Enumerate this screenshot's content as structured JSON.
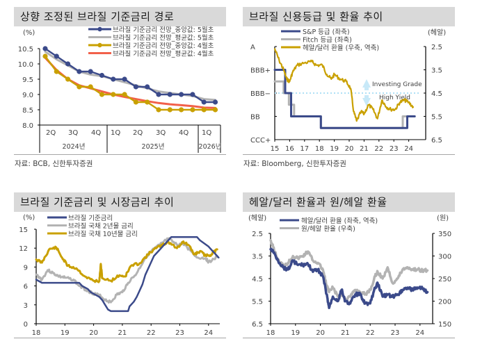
{
  "panels": [
    {
      "title": "상향 조정된 브라질 기준금리 경로",
      "source": "자료: BCB, 신한투자증권"
    },
    {
      "title": "브라질 신용등급 및 환율 추이",
      "source": "자료: Bloomberg, 신한투자증권"
    },
    {
      "title": "브라질 기준금리 및 시장금리 추이",
      "source": ""
    },
    {
      "title": "헤알/달러 환율과 원/헤알 환율",
      "source": ""
    }
  ],
  "chart_data": [
    {
      "type": "line",
      "title": "상향 조정된 브라질 기준금리 경로",
      "ylabel": "(%)",
      "ylim": [
        8.0,
        10.5
      ],
      "yticks": [
        "10.5",
        "10.0",
        "9.5",
        "9.0",
        "8.5",
        "8.0"
      ],
      "x_quarters": [
        "2Q",
        "3Q",
        "4Q",
        "1Q",
        "2Q",
        "3Q",
        "4Q",
        "1Q"
      ],
      "x_years": [
        "2024년",
        "2025년",
        "2026년"
      ],
      "series": [
        {
          "name": "브라질 기준금리 전망_중앙값: 5월초",
          "color": "#3b4a8a",
          "markers": true,
          "values": [
            10.5,
            10.25,
            10.0,
            9.75,
            9.75,
            9.625,
            9.5,
            9.5,
            9.25,
            9.25,
            9.0,
            9.0,
            9.0,
            9.0,
            8.75,
            8.75
          ]
        },
        {
          "name": "브라질 기준금리 전망_평균값: 5월초",
          "color": "#b3b3b3",
          "markers": false,
          "values": [
            10.4,
            10.15,
            9.95,
            9.75,
            9.65,
            9.6,
            9.5,
            9.4,
            9.3,
            9.2,
            9.1,
            9.05,
            9.0,
            8.95,
            8.85,
            8.82
          ]
        },
        {
          "name": "브라질 기준금리 전망_중앙값: 4월초",
          "color": "#c9a000",
          "markers": true,
          "values": [
            10.25,
            9.75,
            9.5,
            9.25,
            9.25,
            9.0,
            9.0,
            9.0,
            8.75,
            8.75,
            8.5,
            8.5,
            8.5,
            8.5,
            8.5,
            8.5
          ]
        },
        {
          "name": "브라질 기준금리 전망_평균값: 4월초",
          "color": "#f2604a",
          "markers": false,
          "values": [
            10.2,
            9.8,
            9.5,
            9.3,
            9.2,
            9.1,
            9.0,
            8.92,
            8.85,
            8.78,
            8.72,
            8.68,
            8.65,
            8.62,
            8.57,
            8.56
          ]
        }
      ]
    },
    {
      "type": "line",
      "title": "브라질 신용등급 및 환율 추이",
      "y_left_ticks": [
        "A",
        "BBB+",
        "BBB−",
        "BB",
        "CCC+"
      ],
      "y_right_label": "(헤알)",
      "y_right_ticks": [
        "2.5",
        "3.5",
        "4.5",
        "5.5",
        "6.5"
      ],
      "y_right_lim": [
        2.5,
        6.5
      ],
      "x_ticks": [
        "15",
        "16",
        "17",
        "18",
        "19",
        "20",
        "21",
        "22",
        "23",
        "24"
      ],
      "annotations": [
        "Investing Grade",
        "High Yield"
      ],
      "series": [
        {
          "name": "S&P 등급 (좌축)",
          "color": "#3b4a8a",
          "steps": [
            [
              15.0,
              1
            ],
            [
              15.7,
              1
            ],
            [
              15.7,
              2
            ],
            [
              16.1,
              2
            ],
            [
              16.1,
              3
            ],
            [
              18.1,
              3
            ],
            [
              18.1,
              3.5
            ],
            [
              23.9,
              3.5
            ],
            [
              23.9,
              3
            ],
            [
              24.4,
              3
            ]
          ]
        },
        {
          "name": "Fitch 등급 (좌축)",
          "color": "#b3b3b3",
          "steps": [
            [
              15.0,
              1.5
            ],
            [
              15.6,
              1.5
            ],
            [
              15.6,
              2
            ],
            [
              15.95,
              2
            ],
            [
              15.95,
              2.5
            ],
            [
              16.3,
              2.5
            ],
            [
              16.3,
              3
            ],
            [
              18.1,
              3
            ],
            [
              18.1,
              3.5
            ],
            [
              23.6,
              3.5
            ],
            [
              23.6,
              3
            ],
            [
              24.4,
              3
            ]
          ]
        },
        {
          "name": "헤알/달러 환율 (우축, 역축)",
          "color": "#c9a000",
          "points": [
            [
              15.0,
              2.6
            ],
            [
              15.3,
              3.1
            ],
            [
              15.6,
              3.5
            ],
            [
              15.8,
              3.9
            ],
            [
              16.0,
              4.0
            ],
            [
              16.2,
              3.6
            ],
            [
              16.5,
              3.3
            ],
            [
              17.0,
              3.2
            ],
            [
              17.5,
              3.15
            ],
            [
              17.8,
              3.3
            ],
            [
              18.2,
              3.3
            ],
            [
              18.5,
              3.7
            ],
            [
              18.8,
              3.9
            ],
            [
              19.0,
              3.7
            ],
            [
              19.4,
              3.9
            ],
            [
              19.8,
              4.0
            ],
            [
              20.1,
              4.3
            ],
            [
              20.3,
              5.3
            ],
            [
              20.5,
              5.7
            ],
            [
              20.8,
              5.3
            ],
            [
              21.0,
              5.4
            ],
            [
              21.3,
              5.0
            ],
            [
              21.6,
              5.2
            ],
            [
              21.9,
              5.6
            ],
            [
              22.2,
              4.8
            ],
            [
              22.5,
              5.1
            ],
            [
              22.8,
              5.2
            ],
            [
              23.1,
              5.2
            ],
            [
              23.4,
              4.9
            ],
            [
              23.7,
              4.8
            ],
            [
              24.0,
              4.9
            ],
            [
              24.3,
              5.1
            ]
          ]
        }
      ]
    },
    {
      "type": "line",
      "title": "브라질 기준금리 및 시장금리 추이",
      "ylabel": "(%)",
      "ylim": [
        0,
        15
      ],
      "yticks": [
        "15",
        "12",
        "9",
        "6",
        "3",
        "0"
      ],
      "x_ticks": [
        "18",
        "19",
        "20",
        "21",
        "22",
        "23",
        "24"
      ],
      "series": [
        {
          "name": "브라질 기준금리",
          "color": "#3b4a8a",
          "points": [
            [
              18.0,
              7.0
            ],
            [
              18.2,
              6.5
            ],
            [
              19.5,
              6.5
            ],
            [
              19.6,
              6.0
            ],
            [
              19.8,
              5.5
            ],
            [
              19.9,
              5.0
            ],
            [
              20.1,
              4.5
            ],
            [
              20.2,
              4.25
            ],
            [
              20.3,
              3.75
            ],
            [
              20.4,
              3.0
            ],
            [
              20.5,
              2.25
            ],
            [
              20.6,
              2.0
            ],
            [
              21.2,
              2.0
            ],
            [
              21.25,
              2.75
            ],
            [
              21.4,
              3.5
            ],
            [
              21.5,
              4.25
            ],
            [
              21.6,
              5.25
            ],
            [
              21.7,
              6.25
            ],
            [
              21.8,
              7.75
            ],
            [
              21.95,
              9.25
            ],
            [
              22.1,
              10.75
            ],
            [
              22.3,
              11.75
            ],
            [
              22.5,
              12.75
            ],
            [
              22.6,
              13.25
            ],
            [
              22.7,
              13.75
            ],
            [
              23.6,
              13.75
            ],
            [
              23.7,
              13.25
            ],
            [
              23.85,
              12.75
            ],
            [
              24.0,
              12.25
            ],
            [
              24.1,
              11.75
            ],
            [
              24.2,
              11.25
            ],
            [
              24.3,
              10.75
            ],
            [
              24.35,
              10.5
            ]
          ]
        },
        {
          "name": "브라질 국채 2년물 금리",
          "color": "#b3b3b3",
          "points": [
            [
              18.0,
              7.8
            ],
            [
              18.2,
              7.0
            ],
            [
              18.4,
              8.5
            ],
            [
              18.6,
              8.0
            ],
            [
              18.8,
              7.5
            ],
            [
              19.0,
              7.3
            ],
            [
              19.3,
              7.0
            ],
            [
              19.5,
              6.0
            ],
            [
              19.8,
              5.2
            ],
            [
              20.0,
              4.8
            ],
            [
              20.2,
              4.5
            ],
            [
              20.4,
              3.8
            ],
            [
              20.6,
              3.4
            ],
            [
              20.8,
              4.6
            ],
            [
              21.0,
              5.0
            ],
            [
              21.2,
              6.5
            ],
            [
              21.5,
              8.0
            ],
            [
              21.8,
              10.5
            ],
            [
              22.0,
              11.5
            ],
            [
              22.3,
              12.5
            ],
            [
              22.6,
              13.5
            ],
            [
              22.9,
              12.5
            ],
            [
              23.1,
              12.8
            ],
            [
              23.4,
              11.5
            ],
            [
              23.6,
              10.5
            ],
            [
              23.9,
              10.4
            ],
            [
              24.0,
              9.8
            ],
            [
              24.3,
              10.6
            ]
          ]
        },
        {
          "name": "브라질 국채 10년물 금리",
          "color": "#c9a000",
          "points": [
            [
              18.0,
              10.2
            ],
            [
              18.2,
              9.7
            ],
            [
              18.45,
              11.8
            ],
            [
              18.7,
              12.1
            ],
            [
              18.9,
              10.5
            ],
            [
              19.1,
              9.2
            ],
            [
              19.4,
              8.8
            ],
            [
              19.7,
              7.5
            ],
            [
              20.0,
              6.8
            ],
            [
              20.2,
              6.8
            ],
            [
              20.25,
              9.5
            ],
            [
              20.3,
              7.2
            ],
            [
              20.6,
              6.8
            ],
            [
              20.9,
              7.7
            ],
            [
              21.1,
              7.5
            ],
            [
              21.3,
              9.2
            ],
            [
              21.6,
              9.6
            ],
            [
              21.9,
              11.0
            ],
            [
              22.1,
              11.8
            ],
            [
              22.4,
              12.5
            ],
            [
              22.6,
              13.0
            ],
            [
              22.9,
              12.0
            ],
            [
              23.1,
              13.0
            ],
            [
              23.3,
              12.5
            ],
            [
              23.5,
              11.0
            ],
            [
              23.7,
              11.5
            ],
            [
              23.9,
              10.8
            ],
            [
              24.1,
              11.0
            ],
            [
              24.3,
              11.8
            ]
          ]
        }
      ]
    },
    {
      "type": "line",
      "title": "헤알/달러 환율과 원/헤알 환율",
      "y_left_label": "(헤알)",
      "y_left_ticks": [
        "2.5",
        "3.5",
        "4.5",
        "5.5",
        "6.5"
      ],
      "y_left_lim": [
        2.5,
        6.5
      ],
      "y_right_label": "(원)",
      "y_right_ticks": [
        "350",
        "300",
        "250",
        "200",
        "150"
      ],
      "y_right_lim": [
        150,
        350
      ],
      "x_ticks": [
        "18",
        "19",
        "20",
        "21",
        "22",
        "23",
        "24"
      ],
      "series": [
        {
          "name": "헤알/달러 환율 (좌축, 역축)",
          "color": "#3b4a8a",
          "axis": "left",
          "points": [
            [
              18.0,
              3.2
            ],
            [
              18.1,
              3.3
            ],
            [
              18.3,
              3.7
            ],
            [
              18.5,
              4.0
            ],
            [
              18.7,
              4.1
            ],
            [
              18.9,
              3.7
            ],
            [
              19.1,
              3.9
            ],
            [
              19.3,
              3.9
            ],
            [
              19.5,
              3.85
            ],
            [
              19.7,
              4.2
            ],
            [
              19.9,
              4.1
            ],
            [
              20.1,
              4.4
            ],
            [
              20.25,
              5.2
            ],
            [
              20.35,
              5.8
            ],
            [
              20.5,
              5.3
            ],
            [
              20.7,
              5.5
            ],
            [
              20.85,
              5.0
            ],
            [
              21.0,
              5.5
            ],
            [
              21.2,
              5.6
            ],
            [
              21.4,
              5.2
            ],
            [
              21.6,
              5.2
            ],
            [
              21.8,
              5.6
            ],
            [
              22.0,
              5.6
            ],
            [
              22.2,
              4.9
            ],
            [
              22.3,
              4.7
            ],
            [
              22.5,
              5.3
            ],
            [
              22.7,
              5.2
            ],
            [
              22.9,
              5.3
            ],
            [
              23.1,
              5.2
            ],
            [
              23.3,
              5.0
            ],
            [
              23.5,
              4.9
            ],
            [
              23.7,
              5.0
            ],
            [
              23.9,
              4.9
            ],
            [
              24.1,
              4.95
            ],
            [
              24.3,
              5.1
            ]
          ]
        },
        {
          "name": "원/헤알 환율 (우축)",
          "color": "#b3b3b3",
          "axis": "right",
          "points": [
            [
              18.0,
              335
            ],
            [
              18.1,
              320
            ],
            [
              18.3,
              290
            ],
            [
              18.5,
              280
            ],
            [
              18.7,
              285
            ],
            [
              18.9,
              300
            ],
            [
              19.1,
              295
            ],
            [
              19.3,
              300
            ],
            [
              19.5,
              310
            ],
            [
              19.7,
              290
            ],
            [
              19.9,
              285
            ],
            [
              20.1,
              270
            ],
            [
              20.25,
              235
            ],
            [
              20.35,
              220
            ],
            [
              20.5,
              230
            ],
            [
              20.7,
              210
            ],
            [
              20.85,
              215
            ],
            [
              21.0,
              205
            ],
            [
              21.2,
              210
            ],
            [
              21.4,
              225
            ],
            [
              21.6,
              220
            ],
            [
              21.8,
              215
            ],
            [
              22.0,
              225
            ],
            [
              22.2,
              255
            ],
            [
              22.3,
              265
            ],
            [
              22.5,
              250
            ],
            [
              22.7,
              275
            ],
            [
              22.9,
              240
            ],
            [
              23.1,
              250
            ],
            [
              23.3,
              270
            ],
            [
              23.5,
              275
            ],
            [
              23.7,
              270
            ],
            [
              23.9,
              270
            ],
            [
              24.1,
              268
            ],
            [
              24.3,
              268
            ]
          ]
        }
      ]
    }
  ]
}
